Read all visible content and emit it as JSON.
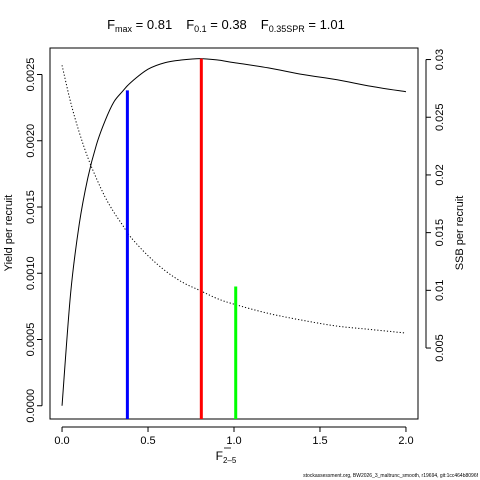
{
  "chart_data": {
    "type": "line",
    "title": {
      "fmax_sym": "F",
      "fmax_sub": "max",
      "fmax_val": " = 0.81",
      "f01_sym": "F",
      "f01_sub": "0.1",
      "f01_val": " = 0.38",
      "fspr_sym": "F",
      "fspr_sub": "0.35SPR",
      "fspr_val": " = 1.01"
    },
    "xlabel": {
      "main": "F",
      "sub": "2–5"
    },
    "ylabel_left": "Yield per recruit",
    "ylabel_right": "SSB per recruit",
    "xlim": [
      -0.07,
      2.07
    ],
    "ylim_left": [
      -0.0001,
      0.0027
    ],
    "ylim_right": [
      -0.00115,
      0.031
    ],
    "x_ticks": [
      0,
      0.5,
      1,
      1.5,
      2
    ],
    "x_tick_labels": [
      "0.0",
      "0.5",
      "1.0",
      "1.5",
      "2.0"
    ],
    "y_left_ticks": [
      0,
      0.0005,
      0.001,
      0.0015,
      0.002,
      0.0025
    ],
    "y_left_tick_labels": [
      "0.0000",
      "0.0005",
      "0.0010",
      "0.0015",
      "0.0020",
      "0.0025"
    ],
    "y_right_ticks": [
      0.005,
      0.01,
      0.015,
      0.02,
      0.025,
      0.03
    ],
    "y_right_tick_labels": [
      "0.005",
      "0.01",
      "0.015",
      "0.02",
      "0.025",
      "0.03"
    ],
    "series": [
      {
        "axis": "left",
        "style": "solid",
        "color": "#000000",
        "x": [
          0,
          0.05,
          0.1,
          0.15,
          0.2,
          0.25,
          0.3,
          0.35,
          0.4,
          0.5,
          0.6,
          0.7,
          0.8,
          0.9,
          1.0,
          1.2,
          1.4,
          1.6,
          1.8,
          2.0
        ],
        "values": [
          0.0,
          0.00085,
          0.00137,
          0.00172,
          0.00197,
          0.00215,
          0.00229,
          0.00237,
          0.00244,
          0.00254,
          0.00259,
          0.00261,
          0.00262,
          0.00261,
          0.00259,
          0.00255,
          0.0025,
          0.00246,
          0.00241,
          0.00237
        ]
      },
      {
        "axis": "right",
        "style": "dotted",
        "color": "#000000",
        "x": [
          0,
          0.05,
          0.1,
          0.15,
          0.2,
          0.25,
          0.3,
          0.35,
          0.4,
          0.5,
          0.6,
          0.7,
          0.8,
          0.9,
          1.0,
          1.2,
          1.4,
          1.6,
          1.8,
          2.0
        ],
        "values": [
          0.0295,
          0.0263,
          0.0237,
          0.0215,
          0.0197,
          0.0181,
          0.0168,
          0.0157,
          0.0146,
          0.013,
          0.0117,
          0.0107,
          0.01,
          0.0093,
          0.0088,
          0.008,
          0.0074,
          0.0069,
          0.0066,
          0.0063
        ]
      }
    ],
    "reference_lines": [
      {
        "x": 0.38,
        "y": 0.00238,
        "color": "#0000ff"
      },
      {
        "x": 0.81,
        "y": 0.00262,
        "color": "#ff0000"
      },
      {
        "x": 1.01,
        "y": 0.0009,
        "color": "#00ff00"
      }
    ]
  },
  "footer": "stockassessment.org, BW2026_3_maltrunc_smooth, r19694, git:1cc464b8096f"
}
